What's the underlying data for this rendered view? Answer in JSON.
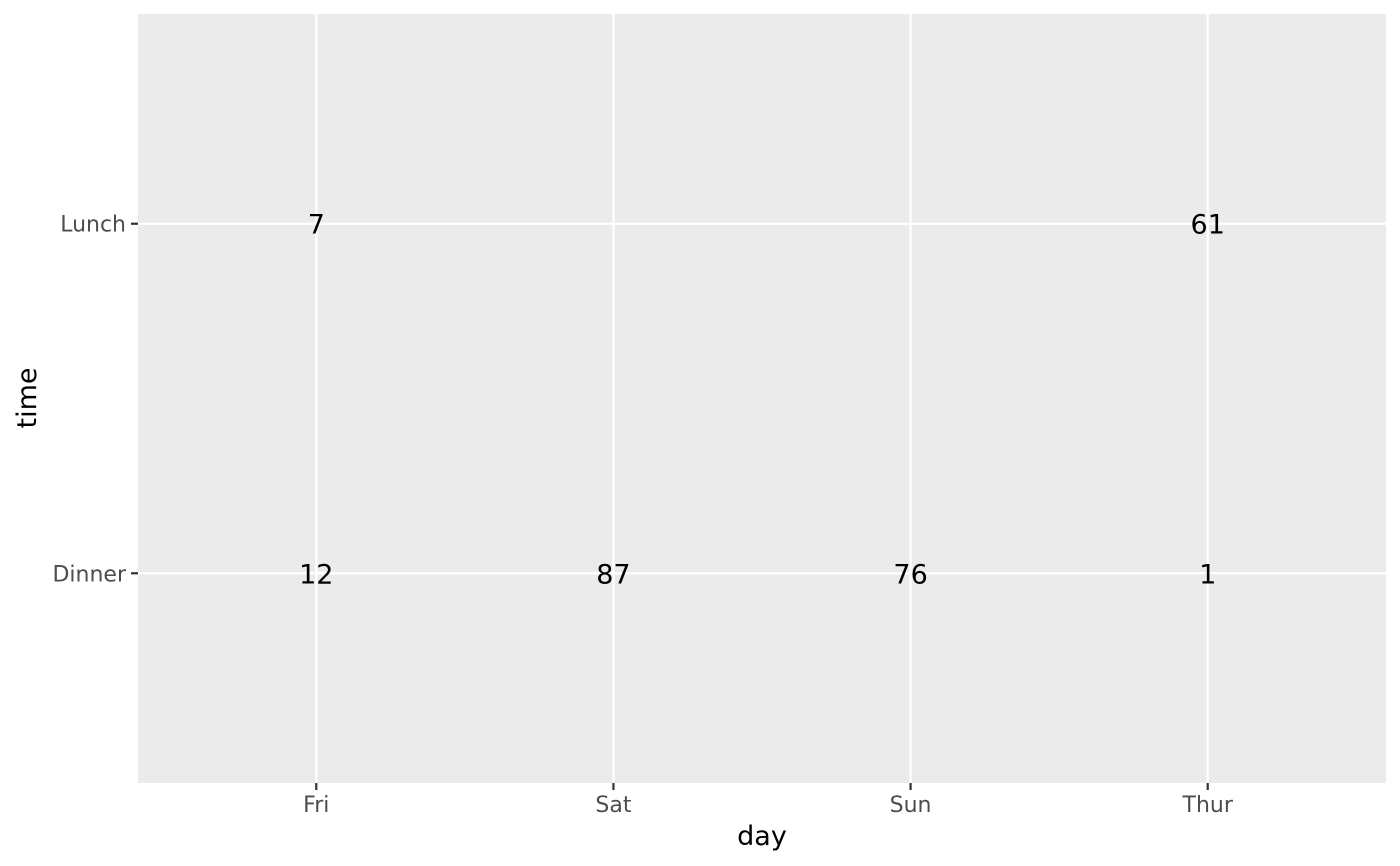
{
  "chart_data": {
    "type": "table",
    "title": "",
    "xlabel": "day",
    "ylabel": "time",
    "x_categories": [
      "Fri",
      "Sat",
      "Sun",
      "Thur"
    ],
    "y_categories": [
      "Dinner",
      "Lunch"
    ],
    "cells": [
      {
        "x": "Fri",
        "y": "Lunch",
        "value": 7
      },
      {
        "x": "Thur",
        "y": "Lunch",
        "value": 61
      },
      {
        "x": "Fri",
        "y": "Dinner",
        "value": 12
      },
      {
        "x": "Sat",
        "y": "Dinner",
        "value": 87
      },
      {
        "x": "Sun",
        "y": "Dinner",
        "value": 76
      },
      {
        "x": "Thur",
        "y": "Dinner",
        "value": 1
      }
    ],
    "grid": true,
    "legend": "none",
    "colors": {
      "panel_background": "#ebebeb",
      "grid": "#ffffff",
      "text": "#000000",
      "tick_text": "#4d4d4d"
    }
  }
}
